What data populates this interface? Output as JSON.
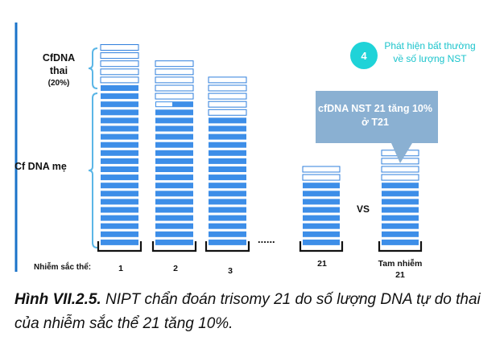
{
  "labels": {
    "fetal": "CfDNA\nthai\n(20%)",
    "maternal": "Cf DNA mẹ",
    "chrom_prefix": "Nhiễm sắc thể:",
    "ellipsis": "......",
    "vs": "VS"
  },
  "step": {
    "number": "4",
    "text": "Phát hiện bất thường về số lượng NST"
  },
  "callout": {
    "text": "cfDNA NST 21 tăng 10% ở T21"
  },
  "chart_data": {
    "type": "bar",
    "categories": [
      "1",
      "2",
      "3",
      "21",
      "Tam nhiễm 21"
    ],
    "series": [
      {
        "values": [
          5,
          5,
          5,
          2,
          4
        ]
      },
      {
        "values": [
          20,
          18,
          16,
          8,
          8
        ]
      }
    ]
  },
  "caption": {
    "label": "Hình VII.2.5.",
    "text": "NIPT chẩn đoán trisomy 21 do số lượng DNA tự do thai của nhiễm sắc thể 21 tăng 10%."
  },
  "colors": {
    "maternal": "#3d8ee8",
    "fetal_stroke": "#2f7fdc",
    "callout": "#8ab0d2",
    "step": "#1fd3d8",
    "axis": "#111111"
  }
}
